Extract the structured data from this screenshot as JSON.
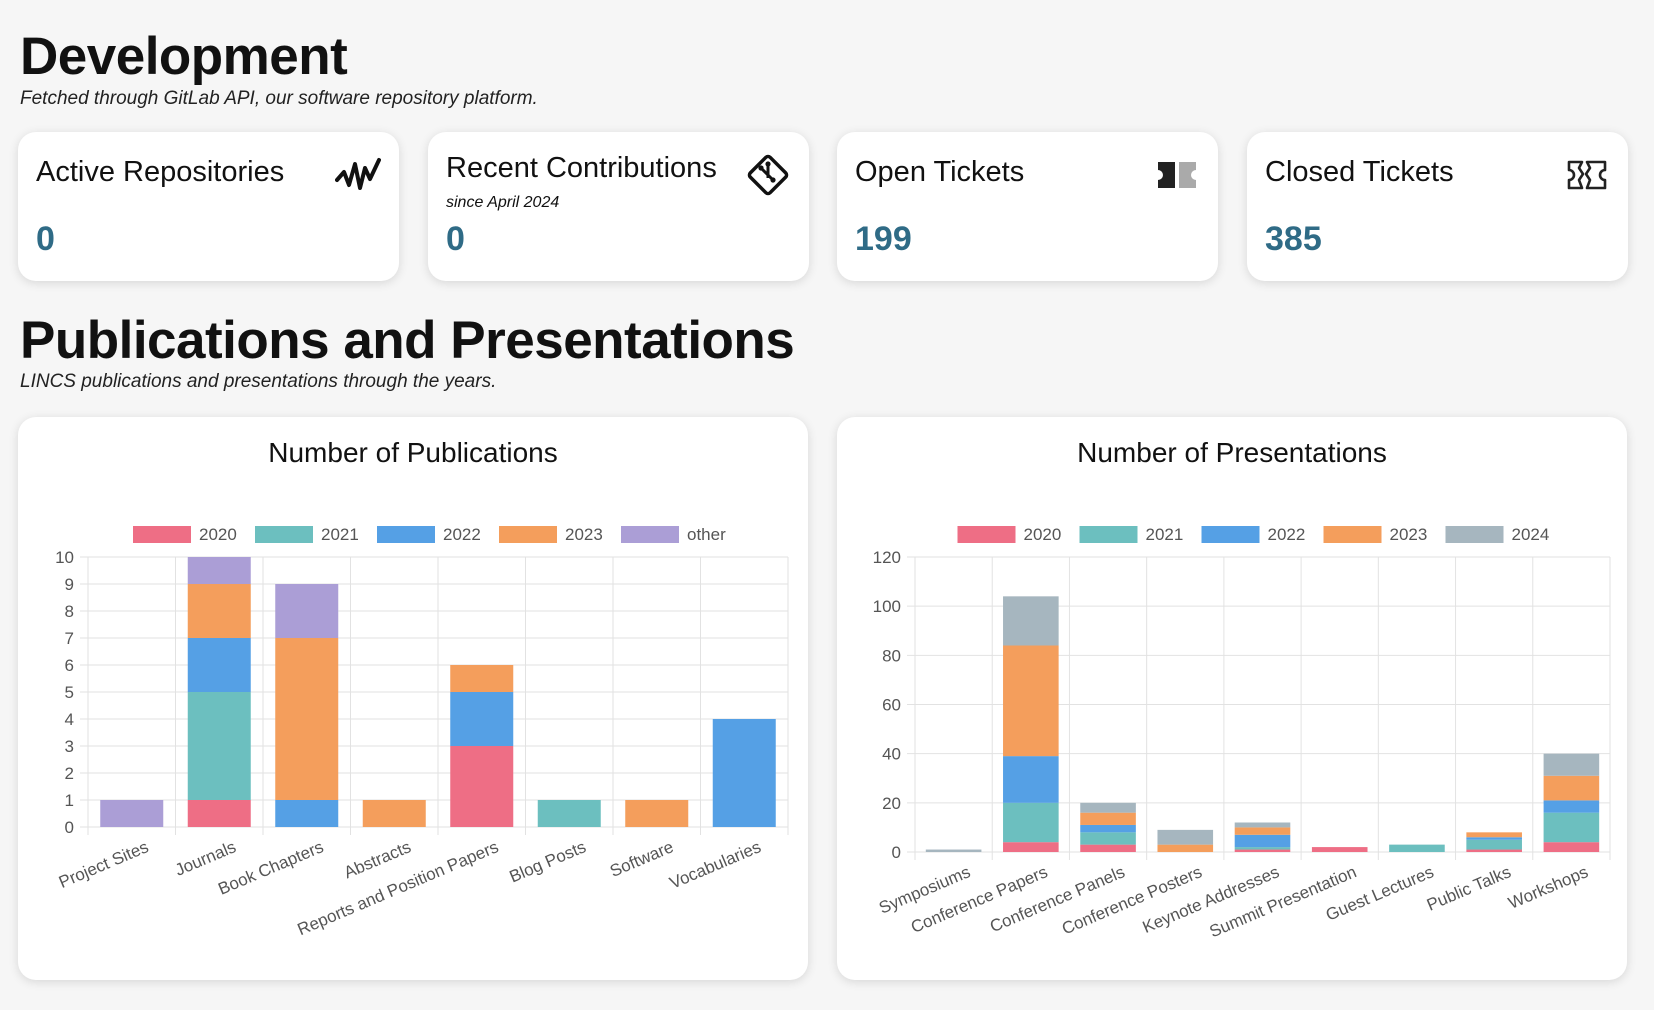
{
  "development": {
    "title": "Development",
    "subtitle": "Fetched through GitLab API, our software repository platform.",
    "cards": [
      {
        "label": "Active Repositories",
        "value": "0",
        "note": "",
        "icon": "activity-icon"
      },
      {
        "label": "Recent Contributions",
        "value": "0",
        "note": "since April 2024",
        "icon": "git-commit-icon"
      },
      {
        "label": "Open Tickets",
        "value": "199",
        "note": "",
        "icon": "ticket-icon"
      },
      {
        "label": "Closed Tickets",
        "value": "385",
        "note": "",
        "icon": "ticket-outline-icon"
      }
    ]
  },
  "publications_section": {
    "title": "Publications and Presentations",
    "subtitle": "LINCS publications and presentations through the years."
  },
  "chart_data": [
    {
      "type": "bar",
      "stacked": true,
      "title": "Number of Publications",
      "categories": [
        "Project Sites",
        "Journals",
        "Book Chapters",
        "Abstracts",
        "Reports and Position Papers",
        "Blog Posts",
        "Software",
        "Vocabularies"
      ],
      "series": [
        {
          "name": "2020",
          "color": "#ee6e85",
          "values": [
            0,
            1,
            0,
            0,
            3,
            0,
            0,
            0
          ]
        },
        {
          "name": "2021",
          "color": "#6cbfbf",
          "values": [
            0,
            4,
            0,
            0,
            0,
            1,
            0,
            0
          ]
        },
        {
          "name": "2022",
          "color": "#55a0e5",
          "values": [
            0,
            2,
            1,
            0,
            2,
            0,
            0,
            4
          ]
        },
        {
          "name": "2023",
          "color": "#f49e5c",
          "values": [
            0,
            2,
            6,
            1,
            1,
            0,
            1,
            0
          ]
        },
        {
          "name": "other",
          "color": "#ab9ed6",
          "values": [
            1,
            1,
            2,
            0,
            0,
            0,
            0,
            0
          ]
        }
      ],
      "ylim": [
        0,
        10
      ],
      "yticks": [
        0,
        1,
        2,
        3,
        4,
        5,
        6,
        7,
        8,
        9,
        10
      ],
      "legend": "top",
      "grid": true
    },
    {
      "type": "bar",
      "stacked": true,
      "title": "Number of Presentations",
      "categories": [
        "Symposiums",
        "Conference Papers",
        "Conference Panels",
        "Conference Posters",
        "Keynote Addresses",
        "Summit Presentation",
        "Guest Lectures",
        "Public Talks",
        "Workshops"
      ],
      "series": [
        {
          "name": "2020",
          "color": "#ee6e85",
          "values": [
            0,
            4,
            3,
            0,
            1,
            2,
            0,
            1,
            4
          ]
        },
        {
          "name": "2021",
          "color": "#6cbfbf",
          "values": [
            0,
            16,
            5,
            0,
            1,
            0,
            3,
            4,
            12
          ]
        },
        {
          "name": "2022",
          "color": "#55a0e5",
          "values": [
            0,
            19,
            3,
            0,
            5,
            0,
            0,
            1,
            5
          ]
        },
        {
          "name": "2023",
          "color": "#f49e5c",
          "values": [
            0,
            45,
            5,
            3,
            3,
            0,
            0,
            2,
            10
          ]
        },
        {
          "name": "2024",
          "color": "#a6b6bf",
          "values": [
            1,
            20,
            4,
            6,
            2,
            0,
            0,
            0,
            9
          ]
        }
      ],
      "ylim": [
        0,
        120
      ],
      "yticks": [
        0,
        20,
        40,
        60,
        80,
        100,
        120
      ],
      "legend": "top",
      "grid": true
    }
  ]
}
